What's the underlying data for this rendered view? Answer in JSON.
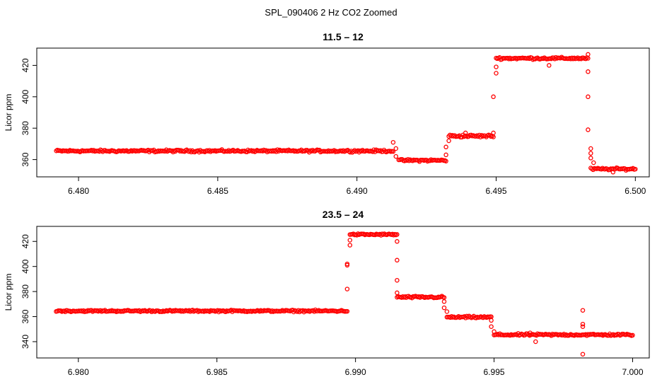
{
  "figure_title": "SPL_090406  2 Hz CO2 Zoomed",
  "colors": {
    "points": "#ff0000",
    "axis": "#000000",
    "background": "#ffffff"
  },
  "chart_data": [
    {
      "type": "scatter",
      "title": "11.5 – 12",
      "xlabel": "",
      "ylabel": "Licor ppm",
      "xlim": [
        6.4785,
        6.5005
      ],
      "ylim": [
        349,
        431
      ],
      "xticks": [
        6.48,
        6.485,
        6.49,
        6.495,
        6.5
      ],
      "xtick_labels": [
        "6.480",
        "6.485",
        "6.490",
        "6.495",
        "6.500"
      ],
      "yticks": [
        360,
        380,
        400,
        420
      ],
      "ytick_labels": [
        "360",
        "380",
        "400",
        "420"
      ],
      "segments": [
        {
          "x_start": 6.4792,
          "x_end": 6.4913,
          "y": 365.5,
          "noise": 1.0
        },
        {
          "x_start": 6.4915,
          "x_end": 6.4932,
          "y": 359.5,
          "noise": 1.0
        },
        {
          "x_start": 6.4933,
          "x_end": 6.4949,
          "y": 375.0,
          "noise": 1.2
        },
        {
          "x_start": 6.495,
          "x_end": 6.4983,
          "y": 424.5,
          "noise": 1.0
        },
        {
          "x_start": 6.4984,
          "x_end": 6.5,
          "y": 354.0,
          "noise": 1.0
        }
      ],
      "transition_points": [
        {
          "x": 6.4913,
          "y": 371
        },
        {
          "x": 6.4914,
          "y": 362
        },
        {
          "x": 6.4914,
          "y": 367
        },
        {
          "x": 6.4932,
          "y": 363
        },
        {
          "x": 6.4932,
          "y": 368
        },
        {
          "x": 6.4933,
          "y": 372
        },
        {
          "x": 6.4949,
          "y": 377
        },
        {
          "x": 6.4949,
          "y": 400
        },
        {
          "x": 6.495,
          "y": 415
        },
        {
          "x": 6.495,
          "y": 419
        },
        {
          "x": 6.4983,
          "y": 427
        },
        {
          "x": 6.4983,
          "y": 416
        },
        {
          "x": 6.4983,
          "y": 400
        },
        {
          "x": 6.4983,
          "y": 379
        },
        {
          "x": 6.4984,
          "y": 367
        },
        {
          "x": 6.4984,
          "y": 364
        },
        {
          "x": 6.4984,
          "y": 361
        },
        {
          "x": 6.4985,
          "y": 358
        },
        {
          "x": 6.4969,
          "y": 420
        },
        {
          "x": 6.4992,
          "y": 352
        },
        {
          "x": 6.4939,
          "y": 377
        }
      ]
    },
    {
      "type": "scatter",
      "title": "23.5 – 24",
      "xlabel": "",
      "ylabel": "Licor ppm",
      "xlim": [
        6.9785,
        7.0006
      ],
      "ylim": [
        327,
        432
      ],
      "xticks": [
        6.98,
        6.985,
        6.99,
        6.995,
        7.0
      ],
      "xtick_labels": [
        "6.980",
        "6.985",
        "6.990",
        "6.995",
        "7.000"
      ],
      "yticks": [
        340,
        360,
        380,
        400,
        420
      ],
      "ytick_labels": [
        "340",
        "360",
        "380",
        "400",
        "420"
      ],
      "segments": [
        {
          "x_start": 6.9792,
          "x_end": 6.9897,
          "y": 364.5,
          "noise": 1.0
        },
        {
          "x_start": 6.9898,
          "x_end": 6.9915,
          "y": 425.5,
          "noise": 1.0
        },
        {
          "x_start": 6.9915,
          "x_end": 6.9932,
          "y": 375.5,
          "noise": 1.2
        },
        {
          "x_start": 6.9933,
          "x_end": 6.9949,
          "y": 359.5,
          "noise": 1.2
        },
        {
          "x_start": 6.995,
          "x_end": 7.0,
          "y": 345.5,
          "noise": 1.2
        }
      ],
      "transition_points": [
        {
          "x": 6.9897,
          "y": 382
        },
        {
          "x": 6.9897,
          "y": 401
        },
        {
          "x": 6.9897,
          "y": 402
        },
        {
          "x": 6.9898,
          "y": 417
        },
        {
          "x": 6.9898,
          "y": 421
        },
        {
          "x": 6.9915,
          "y": 420
        },
        {
          "x": 6.9915,
          "y": 405
        },
        {
          "x": 6.9915,
          "y": 389
        },
        {
          "x": 6.9915,
          "y": 379
        },
        {
          "x": 6.9932,
          "y": 372
        },
        {
          "x": 6.9932,
          "y": 367
        },
        {
          "x": 6.9933,
          "y": 364
        },
        {
          "x": 6.9949,
          "y": 357
        },
        {
          "x": 6.9949,
          "y": 352
        },
        {
          "x": 6.995,
          "y": 348
        },
        {
          "x": 6.9982,
          "y": 365
        },
        {
          "x": 6.9982,
          "y": 354
        },
        {
          "x": 6.9982,
          "y": 352
        },
        {
          "x": 6.9982,
          "y": 330
        },
        {
          "x": 6.9965,
          "y": 340
        },
        {
          "x": 6.9963,
          "y": 347
        }
      ]
    }
  ]
}
